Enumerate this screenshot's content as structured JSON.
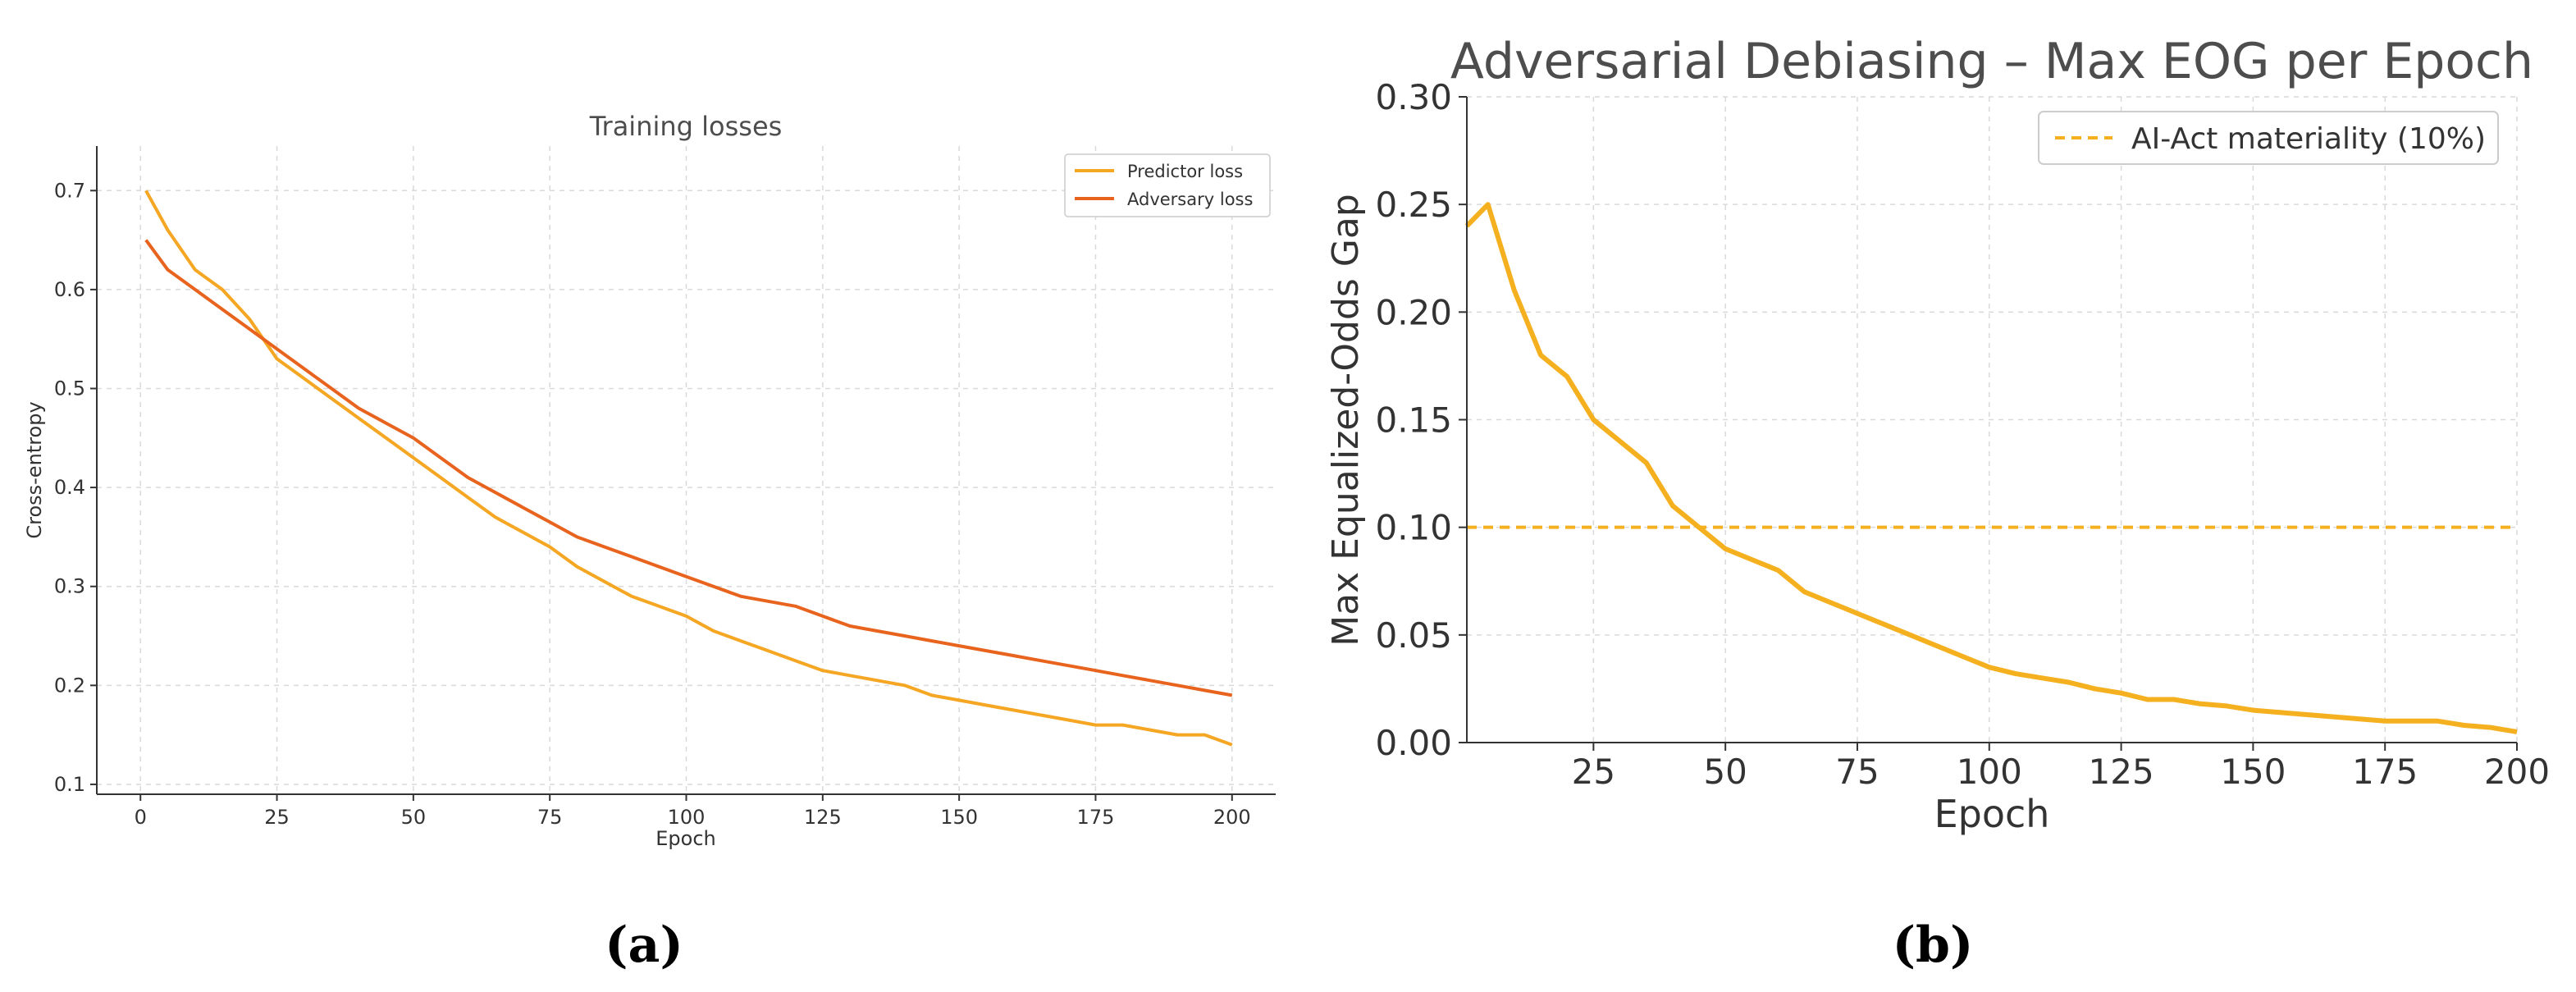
{
  "chart_data": [
    {
      "type": "line",
      "panel_label": "(a)",
      "title": "Training losses",
      "xlabel": "Epoch",
      "ylabel": "Cross-entropy",
      "xlim": [
        -8,
        208
      ],
      "ylim": [
        0.09,
        0.745
      ],
      "xticks": [
        0,
        25,
        50,
        75,
        100,
        125,
        150,
        175,
        200
      ],
      "yticks": [
        0.1,
        0.2,
        0.3,
        0.4,
        0.5,
        0.6,
        0.7
      ],
      "grid": true,
      "legend_position": "top-right",
      "series": [
        {
          "name": "Predictor loss",
          "color": "#f5a623",
          "x": [
            1,
            5,
            10,
            15,
            20,
            25,
            30,
            35,
            40,
            45,
            50,
            55,
            60,
            65,
            70,
            75,
            80,
            85,
            90,
            95,
            100,
            105,
            110,
            115,
            120,
            125,
            130,
            135,
            140,
            145,
            150,
            155,
            160,
            165,
            170,
            175,
            180,
            185,
            190,
            195,
            200
          ],
          "y": [
            0.7,
            0.66,
            0.62,
            0.6,
            0.57,
            0.53,
            0.51,
            0.49,
            0.47,
            0.45,
            0.43,
            0.41,
            0.39,
            0.37,
            0.355,
            0.34,
            0.32,
            0.305,
            0.29,
            0.28,
            0.27,
            0.255,
            0.245,
            0.235,
            0.225,
            0.215,
            0.21,
            0.205,
            0.2,
            0.19,
            0.185,
            0.18,
            0.175,
            0.17,
            0.165,
            0.16,
            0.16,
            0.155,
            0.15,
            0.15,
            0.14
          ]
        },
        {
          "name": "Adversary loss",
          "color": "#e8641e",
          "x": [
            1,
            5,
            10,
            15,
            20,
            25,
            30,
            35,
            40,
            45,
            50,
            55,
            60,
            65,
            70,
            75,
            80,
            85,
            90,
            95,
            100,
            105,
            110,
            115,
            120,
            125,
            130,
            135,
            140,
            145,
            150,
            155,
            160,
            165,
            170,
            175,
            180,
            185,
            190,
            195,
            200
          ],
          "y": [
            0.65,
            0.62,
            0.6,
            0.58,
            0.56,
            0.54,
            0.52,
            0.5,
            0.48,
            0.465,
            0.45,
            0.43,
            0.41,
            0.395,
            0.38,
            0.365,
            0.35,
            0.34,
            0.33,
            0.32,
            0.31,
            0.3,
            0.29,
            0.285,
            0.28,
            0.27,
            0.26,
            0.255,
            0.25,
            0.245,
            0.24,
            0.235,
            0.23,
            0.225,
            0.22,
            0.215,
            0.21,
            0.205,
            0.2,
            0.195,
            0.19
          ]
        }
      ]
    },
    {
      "type": "line",
      "panel_label": "(b)",
      "title": "Adversarial Debiasing – Max EOG per Epoch",
      "xlabel": "Epoch",
      "ylabel": "Max Equalized-Odds Gap",
      "xlim": [
        1,
        200
      ],
      "ylim": [
        0,
        0.3
      ],
      "xticks": [
        25,
        50,
        75,
        100,
        125,
        150,
        175,
        200
      ],
      "ytick_labels": [
        "0.00",
        "0.05",
        "0.10",
        "0.15",
        "0.20",
        "0.25",
        "0.30"
      ],
      "grid": true,
      "legend_position": "top-right",
      "series": [
        {
          "name": "Max EOG",
          "color": "#f5b01f",
          "x": [
            1,
            5,
            10,
            15,
            20,
            25,
            30,
            35,
            40,
            45,
            50,
            55,
            60,
            65,
            70,
            75,
            80,
            85,
            90,
            95,
            100,
            105,
            110,
            115,
            120,
            125,
            130,
            135,
            140,
            145,
            150,
            155,
            160,
            165,
            170,
            175,
            180,
            185,
            190,
            195,
            200
          ],
          "y": [
            0.24,
            0.25,
            0.21,
            0.18,
            0.17,
            0.15,
            0.14,
            0.13,
            0.11,
            0.1,
            0.09,
            0.085,
            0.08,
            0.07,
            0.065,
            0.06,
            0.055,
            0.05,
            0.045,
            0.04,
            0.035,
            0.032,
            0.03,
            0.028,
            0.025,
            0.023,
            0.02,
            0.02,
            0.018,
            0.017,
            0.015,
            0.014,
            0.013,
            0.012,
            0.011,
            0.01,
            0.01,
            0.01,
            0.008,
            0.007,
            0.005
          ]
        }
      ],
      "reference_line": {
        "name": "AI-Act materiality (10%)",
        "y": 0.1,
        "color": "#f5b01f",
        "style": "dashed"
      }
    }
  ]
}
